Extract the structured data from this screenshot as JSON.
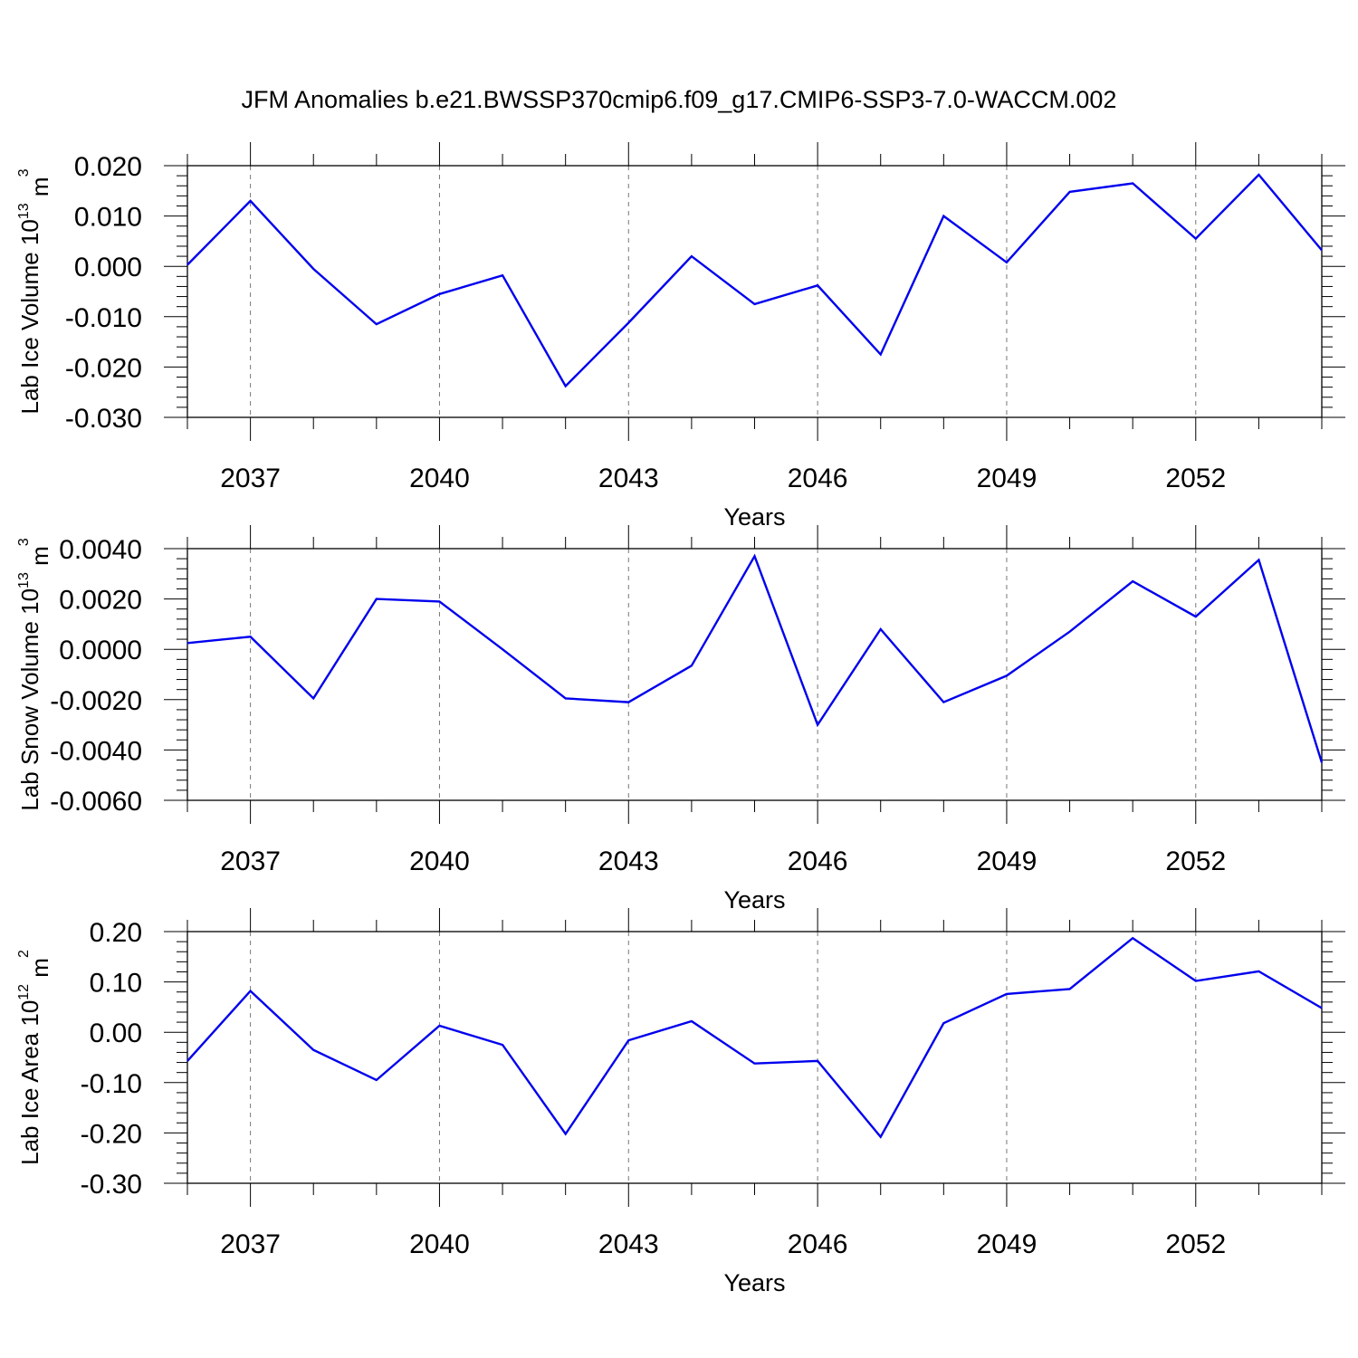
{
  "figure": {
    "title": "JFM Anomalies b.e21.BWSSP370cmip6.f09_g17.CMIP6-SSP3-7.0-WACCM.002"
  },
  "chart_data": [
    {
      "type": "line",
      "title": "",
      "xlabel": "Years",
      "ylabel": {
        "text": "Lab Ice Volume 10",
        "exp": "13",
        "unit": " m",
        "unit_exp": "3"
      },
      "xlim": [
        2036,
        2054
      ],
      "ylim": [
        -0.03,
        0.02
      ],
      "yticks": [
        -0.03,
        -0.02,
        -0.01,
        0.0,
        0.01,
        0.02
      ],
      "ytick_labels": [
        "-0.030",
        "-0.020",
        "-0.010",
        "0.000",
        "0.010",
        "0.020"
      ],
      "xticks": [
        2037,
        2040,
        2043,
        2046,
        2049,
        2052
      ],
      "xtick_labels": [
        "2037",
        "2040",
        "2043",
        "2046",
        "2049",
        "2052"
      ],
      "grid": "vertical dashed at labeled years",
      "series": [
        {
          "color": "#0000ee",
          "x": [
            2036,
            2037,
            2038,
            2039,
            2040,
            2041,
            2042,
            2043,
            2044,
            2045,
            2046,
            2047,
            2048,
            2049,
            2050,
            2051,
            2052,
            2053,
            2054
          ],
          "y": [
            0.0003,
            0.013,
            -0.0005,
            -0.0115,
            -0.0055,
            -0.0018,
            -0.0238,
            -0.0112,
            0.002,
            -0.0075,
            -0.0038,
            -0.0175,
            0.01,
            0.0008,
            0.0148,
            0.0165,
            0.0055,
            0.0182,
            0.0032
          ]
        }
      ]
    },
    {
      "type": "line",
      "title": "",
      "xlabel": "Years",
      "ylabel": {
        "text": "Lab Snow Volume 10",
        "exp": "13",
        "unit": " m",
        "unit_exp": "3"
      },
      "xlim": [
        2036,
        2054
      ],
      "ylim": [
        -0.006,
        0.004
      ],
      "yticks": [
        -0.006,
        -0.004,
        -0.002,
        0.0,
        0.002,
        0.004
      ],
      "ytick_labels": [
        "-0.0060",
        "-0.0040",
        "-0.0020",
        "0.0000",
        "0.0020",
        "0.0040"
      ],
      "xticks": [
        2037,
        2040,
        2043,
        2046,
        2049,
        2052
      ],
      "xtick_labels": [
        "2037",
        "2040",
        "2043",
        "2046",
        "2049",
        "2052"
      ],
      "grid": "vertical dashed at labeled years",
      "series": [
        {
          "color": "#0000ee",
          "x": [
            2036,
            2037,
            2038,
            2039,
            2040,
            2041,
            2042,
            2043,
            2044,
            2045,
            2046,
            2047,
            2048,
            2049,
            2050,
            2051,
            2052,
            2053,
            2054
          ],
          "y": [
            0.00025,
            0.0005,
            -0.00195,
            0.002,
            0.0019,
            0.0,
            -0.00195,
            -0.0021,
            -0.00065,
            0.0037,
            -0.003,
            0.0008,
            -0.0021,
            -0.00105,
            0.0007,
            0.0027,
            0.0013,
            0.00355,
            -0.0045
          ]
        }
      ]
    },
    {
      "type": "line",
      "title": "",
      "xlabel": "Years",
      "ylabel": {
        "text": "Lab Ice Area 10",
        "exp": "12",
        "unit": " m",
        "unit_exp": "2"
      },
      "xlim": [
        2036,
        2054
      ],
      "ylim": [
        -0.3,
        0.2
      ],
      "yticks": [
        -0.3,
        -0.2,
        -0.1,
        0.0,
        0.1,
        0.2
      ],
      "ytick_labels": [
        "-0.30",
        "-0.20",
        "-0.10",
        "0.00",
        "0.10",
        "0.20"
      ],
      "xticks": [
        2037,
        2040,
        2043,
        2046,
        2049,
        2052
      ],
      "xtick_labels": [
        "2037",
        "2040",
        "2043",
        "2046",
        "2049",
        "2052"
      ],
      "grid": "vertical dashed at labeled years",
      "series": [
        {
          "color": "#0000ee",
          "x": [
            2036,
            2037,
            2038,
            2039,
            2040,
            2041,
            2042,
            2043,
            2044,
            2045,
            2046,
            2047,
            2048,
            2049,
            2050,
            2051,
            2052,
            2053,
            2054
          ],
          "y": [
            -0.057,
            0.082,
            -0.035,
            -0.095,
            0.013,
            -0.025,
            -0.202,
            -0.016,
            0.022,
            -0.062,
            -0.057,
            -0.208,
            0.018,
            0.076,
            0.086,
            0.187,
            0.102,
            0.121,
            0.048
          ]
        }
      ]
    }
  ]
}
